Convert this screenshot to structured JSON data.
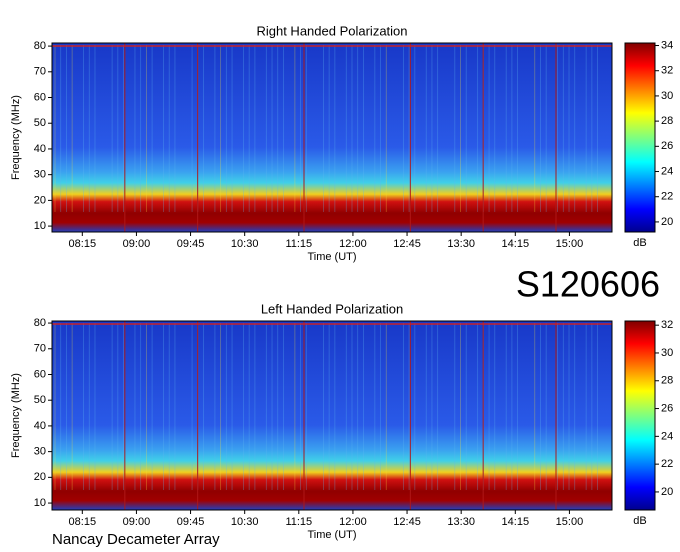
{
  "chart_data": [
    {
      "type": "spectrogram",
      "title": "Right Handed Polarization",
      "xlabel": "Time (UT)",
      "ylabel": "Frequency (MHz)",
      "xlim": [
        7.83,
        15.59
      ],
      "xticks": [
        {
          "value": 8.25,
          "label": "08:15"
        },
        {
          "value": 9.0,
          "label": "09:00"
        },
        {
          "value": 9.75,
          "label": "09:45"
        },
        {
          "value": 10.5,
          "label": "10:30"
        },
        {
          "value": 11.25,
          "label": "11:15"
        },
        {
          "value": 12.0,
          "label": "12:00"
        },
        {
          "value": 12.75,
          "label": "12:45"
        },
        {
          "value": 13.5,
          "label": "13:30"
        },
        {
          "value": 14.25,
          "label": "14:15"
        },
        {
          "value": 15.0,
          "label": "15:00"
        }
      ],
      "ylim": [
        7.7,
        81.2
      ],
      "yticks": [
        10,
        20,
        30,
        40,
        50,
        60,
        70,
        80
      ],
      "colorbar_label": "dB",
      "colorbar_lim": [
        19.2,
        34.2
      ],
      "colorbar_ticks": [
        20,
        22,
        24,
        26,
        28,
        30,
        32,
        34
      ]
    },
    {
      "type": "spectrogram",
      "title": "Left Handed Polarization",
      "xlabel": "Time (UT)",
      "ylabel": "Frequency (MHz)",
      "xlim": [
        7.83,
        15.59
      ],
      "xticks": [
        {
          "value": 8.25,
          "label": "08:15"
        },
        {
          "value": 9.0,
          "label": "09:00"
        },
        {
          "value": 9.75,
          "label": "09:45"
        },
        {
          "value": 10.5,
          "label": "10:30"
        },
        {
          "value": 11.25,
          "label": "11:15"
        },
        {
          "value": 12.0,
          "label": "12:00"
        },
        {
          "value": 12.75,
          "label": "12:45"
        },
        {
          "value": 13.5,
          "label": "13:30"
        },
        {
          "value": 14.25,
          "label": "14:15"
        },
        {
          "value": 15.0,
          "label": "15:00"
        }
      ],
      "ylim": [
        7.3,
        80.8
      ],
      "yticks": [
        10,
        20,
        30,
        40,
        50,
        60,
        70,
        80
      ],
      "colorbar_label": "dB",
      "colorbar_lim": [
        18.7,
        32.3
      ],
      "colorbar_ticks": [
        20,
        22,
        24,
        26,
        28,
        30,
        32
      ]
    }
  ],
  "observation_id": "S120606",
  "instrument": "Nancay Decameter Array"
}
